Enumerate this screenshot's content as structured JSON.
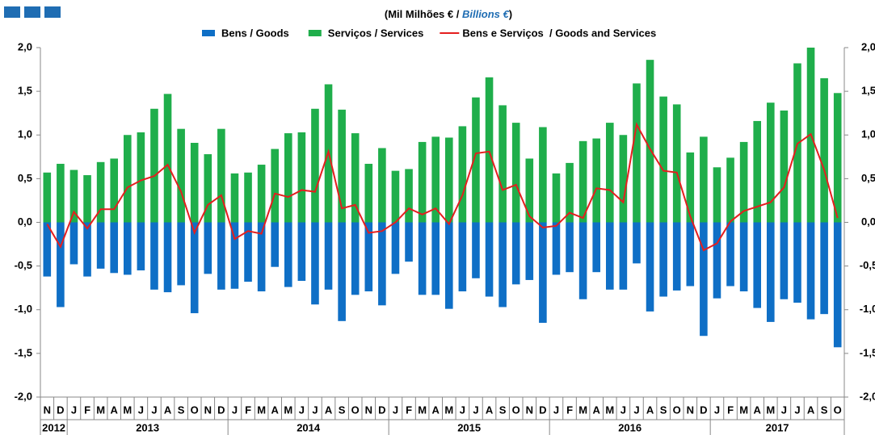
{
  "chart_data": {
    "type": "bar-line",
    "title_parts": [
      "(Mil Milhões € / ",
      "Billions €",
      ")"
    ],
    "categories": [
      "N",
      "D",
      "J",
      "F",
      "M",
      "A",
      "M",
      "J",
      "J",
      "A",
      "S",
      "O",
      "N",
      "D",
      "J",
      "F",
      "M",
      "A",
      "M",
      "J",
      "J",
      "A",
      "S",
      "O",
      "N",
      "D",
      "J",
      "F",
      "M",
      "A",
      "M",
      "J",
      "J",
      "A",
      "S",
      "O",
      "N",
      "D",
      "J",
      "F",
      "M",
      "A",
      "M",
      "J",
      "J",
      "A",
      "S",
      "O",
      "N",
      "D",
      "J",
      "F",
      "M",
      "A",
      "M",
      "J",
      "J",
      "A",
      "S",
      "O"
    ],
    "year_labels": [
      "2012",
      "2013",
      "2014",
      "2015",
      "2016",
      "2017"
    ],
    "series": [
      {
        "name": "Bens / Goods",
        "kind": "bar",
        "color": "#0f6fc6",
        "values": [
          -0.62,
          -0.97,
          -0.48,
          -0.62,
          -0.53,
          -0.58,
          -0.6,
          -0.55,
          -0.77,
          -0.8,
          -0.72,
          -1.04,
          -0.59,
          -0.77,
          -0.76,
          -0.68,
          -0.79,
          -0.51,
          -0.74,
          -0.67,
          -0.94,
          -0.77,
          -1.13,
          -0.83,
          -0.79,
          -0.95,
          -0.59,
          -0.45,
          -0.83,
          -0.83,
          -0.99,
          -0.79,
          -0.64,
          -0.85,
          -0.97,
          -0.71,
          -0.66,
          -1.15,
          -0.6,
          -0.57,
          -0.88,
          -0.57,
          -0.77,
          -0.77,
          -0.47,
          -1.02,
          -0.85,
          -0.78,
          -0.73,
          -1.3,
          -0.87,
          -0.73,
          -0.79,
          -0.98,
          -1.14,
          -0.88,
          -0.92,
          -1.11,
          -1.05,
          -1.43
        ]
      },
      {
        "name": "Serviços / Services",
        "kind": "bar",
        "color": "#1fae4b",
        "values": [
          0.57,
          0.67,
          0.6,
          0.54,
          0.69,
          0.73,
          1.0,
          1.03,
          1.3,
          1.47,
          1.07,
          0.91,
          0.78,
          1.07,
          0.56,
          0.57,
          0.66,
          0.84,
          1.02,
          1.03,
          1.3,
          1.58,
          1.29,
          1.02,
          0.67,
          0.85,
          0.59,
          0.61,
          0.92,
          0.98,
          0.97,
          1.1,
          1.43,
          1.66,
          1.34,
          1.14,
          0.73,
          1.09,
          0.56,
          0.68,
          0.93,
          0.96,
          1.14,
          1.0,
          1.59,
          1.86,
          1.44,
          1.35,
          0.8,
          0.98,
          0.63,
          0.74,
          0.92,
          1.16,
          1.37,
          1.28,
          1.82,
          2.0,
          1.65,
          1.48
        ]
      },
      {
        "name": "Bens e Serviços  / Goods and Services",
        "kind": "line",
        "color": "#e41e1e",
        "values": [
          -0.02,
          -0.28,
          0.12,
          -0.07,
          0.15,
          0.15,
          0.4,
          0.48,
          0.53,
          0.66,
          0.35,
          -0.12,
          0.2,
          0.31,
          -0.19,
          -0.1,
          -0.13,
          0.33,
          0.29,
          0.37,
          0.35,
          0.81,
          0.16,
          0.2,
          -0.12,
          -0.1,
          0.0,
          0.16,
          0.09,
          0.16,
          -0.02,
          0.31,
          0.79,
          0.81,
          0.37,
          0.43,
          0.07,
          -0.06,
          -0.04,
          0.11,
          0.05,
          0.39,
          0.37,
          0.23,
          1.12,
          0.84,
          0.59,
          0.57,
          0.07,
          -0.32,
          -0.24,
          0.01,
          0.13,
          0.18,
          0.23,
          0.4,
          0.9,
          1.01,
          0.6,
          0.05
        ]
      }
    ],
    "ylim": [
      -2.0,
      2.0
    ],
    "yticks": [
      {
        "value": -2.0,
        "label": "-2,0"
      },
      {
        "value": -1.5,
        "label": "-1,5"
      },
      {
        "value": -1.0,
        "label": "-1,0"
      },
      {
        "value": -0.5,
        "label": "-0,5"
      },
      {
        "value": 0.0,
        "label": "0,0"
      },
      {
        "value": 0.5,
        "label": "0,5"
      },
      {
        "value": 1.0,
        "label": "1,0"
      },
      {
        "value": 1.5,
        "label": "1,5"
      },
      {
        "value": 2.0,
        "label": "2,0"
      }
    ],
    "y2lim": [
      -2.0,
      2.0
    ],
    "y2ticks": [
      {
        "value": -2.0,
        "label": "-2,0"
      },
      {
        "value": -1.5,
        "label": "-1,5"
      },
      {
        "value": -1.0,
        "label": "-1,0"
      },
      {
        "value": -0.5,
        "label": "-0,5"
      },
      {
        "value": 0.0,
        "label": "0,0"
      },
      {
        "value": 0.5,
        "label": "0,5"
      },
      {
        "value": 1.0,
        "label": "1,0"
      },
      {
        "value": 1.5,
        "label": "1,5"
      },
      {
        "value": 2.0,
        "label": "2,0"
      }
    ],
    "grid": false
  }
}
